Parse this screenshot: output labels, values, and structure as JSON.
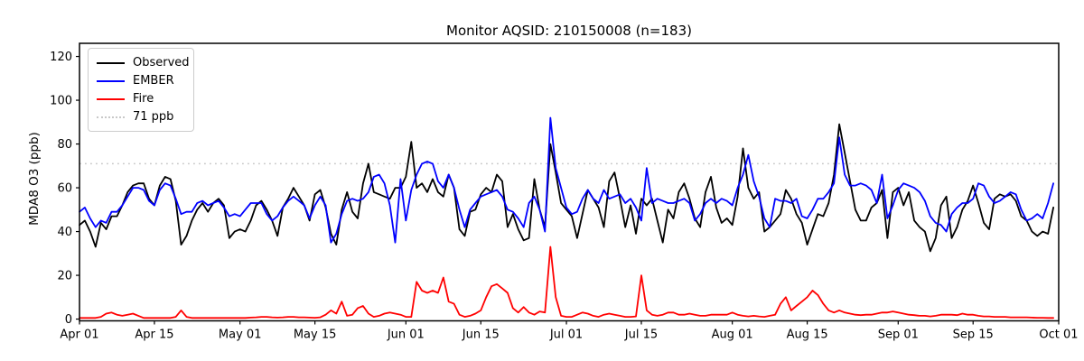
{
  "chart_data": {
    "type": "line",
    "title": "Monitor AQSID: 210150008 (n=183)",
    "xlabel": "",
    "ylabel": "MDA8 O3 (ppb)",
    "n_points": 183,
    "x_tick_labels": [
      "Apr 01",
      "Apr 15",
      "May 01",
      "May 15",
      "Jun 01",
      "Jun 15",
      "Jul 01",
      "Jul 15",
      "Aug 01",
      "Aug 15",
      "Sep 01",
      "Sep 15",
      "Oct 01"
    ],
    "x_tick_positions_days": [
      0,
      14,
      30,
      44,
      61,
      75,
      91,
      105,
      122,
      136,
      153,
      167,
      183
    ],
    "y_ticks": [
      0,
      20,
      40,
      60,
      80,
      100,
      120
    ],
    "ylim": [
      -0.8,
      126
    ],
    "x_range_days": [
      0,
      183
    ],
    "grid": false,
    "legend_position": "upper left",
    "reference_line": {
      "value": 71,
      "label": "71 ppb",
      "color": "#c8c8c8",
      "style": "dotted"
    },
    "series": [
      {
        "name": "Observed",
        "color": "#000000",
        "style": "solid",
        "values": [
          43,
          45,
          40,
          33,
          44,
          41,
          47,
          47,
          52,
          58,
          61,
          62,
          62,
          55,
          52,
          61,
          65,
          64,
          54,
          34,
          38,
          45,
          50,
          53,
          49,
          53,
          55,
          52,
          37,
          40,
          41,
          40,
          45,
          52,
          54,
          50,
          45,
          38,
          51,
          55,
          60,
          56,
          52,
          45,
          57,
          59,
          51,
          39,
          34,
          50,
          58,
          49,
          46,
          62,
          71,
          58,
          57,
          56,
          55,
          60,
          60,
          65,
          81,
          60,
          62,
          58,
          64,
          58,
          56,
          66,
          60,
          41,
          38,
          49,
          50,
          57,
          60,
          58,
          66,
          63,
          42,
          48,
          41,
          36,
          37,
          64,
          50,
          42,
          80,
          67,
          53,
          50,
          47,
          37,
          48,
          59,
          55,
          51,
          42,
          63,
          67,
          55,
          42,
          52,
          39,
          55,
          52,
          55,
          45,
          35,
          50,
          46,
          58,
          62,
          55,
          46,
          42,
          58,
          65,
          51,
          44,
          46,
          43,
          56,
          78,
          60,
          55,
          58,
          40,
          42,
          45,
          48,
          59,
          55,
          48,
          44,
          34,
          41,
          48,
          47,
          53,
          66,
          89,
          76,
          63,
          50,
          45,
          45,
          51,
          53,
          59,
          37,
          58,
          60,
          52,
          58,
          45,
          42,
          40,
          31,
          37,
          52,
          56,
          37,
          42,
          50,
          54,
          61,
          53,
          44,
          41,
          55,
          57,
          56,
          57,
          54,
          47,
          45,
          40,
          38,
          40,
          39,
          51
        ]
      },
      {
        "name": "EMBER",
        "color": "#0000ff",
        "style": "solid",
        "values": [
          49,
          51,
          46,
          42,
          45,
          44,
          49,
          49,
          52,
          56,
          60,
          60,
          59,
          54,
          52,
          59,
          62,
          61,
          55,
          48,
          49,
          49,
          53,
          54,
          52,
          53,
          54,
          51,
          47,
          48,
          47,
          50,
          53,
          53,
          53,
          48,
          45,
          47,
          51,
          54,
          56,
          54,
          52,
          46,
          52,
          56,
          52,
          35,
          39,
          48,
          54,
          55,
          54,
          55,
          58,
          65,
          66,
          62,
          52,
          35,
          64,
          45,
          59,
          66,
          71,
          72,
          71,
          63,
          60,
          66,
          60,
          50,
          42,
          50,
          53,
          56,
          57,
          58,
          59,
          56,
          50,
          49,
          46,
          42,
          53,
          56,
          50,
          40,
          92,
          69,
          60,
          51,
          48,
          49,
          55,
          59,
          55,
          53,
          59,
          55,
          56,
          57,
          53,
          55,
          51,
          45,
          69,
          53,
          55,
          54,
          53,
          53,
          54,
          55,
          53,
          45,
          48,
          53,
          55,
          53,
          55,
          54,
          52,
          60,
          66,
          75,
          63,
          56,
          46,
          42,
          55,
          54,
          54,
          53,
          55,
          47,
          46,
          50,
          55,
          55,
          58,
          62,
          83,
          66,
          61,
          61,
          62,
          61,
          59,
          53,
          66,
          46,
          52,
          59,
          62,
          61,
          60,
          58,
          54,
          47,
          44,
          43,
          40,
          48,
          51,
          53,
          53,
          55,
          62,
          61,
          56,
          53,
          54,
          56,
          58,
          57,
          50,
          45,
          46,
          48,
          46,
          53,
          62
        ]
      },
      {
        "name": "Fire",
        "color": "#ff0000",
        "style": "solid",
        "values": [
          0.5,
          0.5,
          0.5,
          0.5,
          1,
          2.5,
          3,
          2,
          1.5,
          2,
          2.5,
          1.5,
          0.5,
          0.5,
          0.5,
          0.5,
          0.5,
          0.5,
          1,
          4,
          1,
          0.5,
          0.5,
          0.5,
          0.5,
          0.5,
          0.5,
          0.5,
          0.5,
          0.5,
          0.5,
          0.5,
          0.7,
          0.8,
          1,
          1,
          0.8,
          0.7,
          0.8,
          1,
          1,
          0.8,
          0.8,
          0.7,
          0.6,
          0.8,
          2,
          4,
          2.5,
          8,
          1.5,
          2,
          5,
          6,
          2.5,
          1,
          1.5,
          2.5,
          3,
          2.5,
          2,
          1,
          1,
          17,
          13,
          12,
          13,
          12,
          19,
          8,
          7,
          2,
          1,
          1.5,
          2.5,
          4,
          10,
          15,
          16,
          14,
          12,
          5,
          3,
          5.5,
          3,
          2,
          3.5,
          3,
          33,
          10,
          1.5,
          1,
          1,
          2,
          3,
          2.5,
          1.5,
          1,
          2,
          2.5,
          2,
          1.5,
          1,
          1,
          1.2,
          20,
          4,
          2,
          1.5,
          2,
          3,
          3,
          2,
          2,
          2.5,
          2,
          1.5,
          1.5,
          2,
          2,
          2,
          2,
          3,
          2,
          1.5,
          1.2,
          1.5,
          1.2,
          1,
          1.5,
          2,
          7,
          10,
          4,
          6,
          8,
          10,
          13,
          11,
          7,
          4,
          3,
          4,
          3,
          2.5,
          2,
          1.8,
          2,
          2,
          2.5,
          3,
          3,
          3.5,
          3,
          2.5,
          2,
          1.8,
          1.5,
          1.5,
          1.2,
          1.5,
          2,
          2,
          2,
          1.8,
          2.5,
          2,
          2,
          1.5,
          1.2,
          1.2,
          1,
          1,
          1,
          0.8,
          0.8,
          0.8,
          0.8,
          0.7,
          0.6,
          0.6,
          0.5,
          0.5
        ]
      }
    ]
  },
  "legend": {
    "items": [
      {
        "label": "Observed",
        "color": "#000000",
        "style": "solid"
      },
      {
        "label": "EMBER",
        "color": "#0000ff",
        "style": "solid"
      },
      {
        "label": "Fire",
        "color": "#ff0000",
        "style": "solid"
      },
      {
        "label": "71 ppb",
        "color": "#c8c8c8",
        "style": "dotted"
      }
    ]
  }
}
